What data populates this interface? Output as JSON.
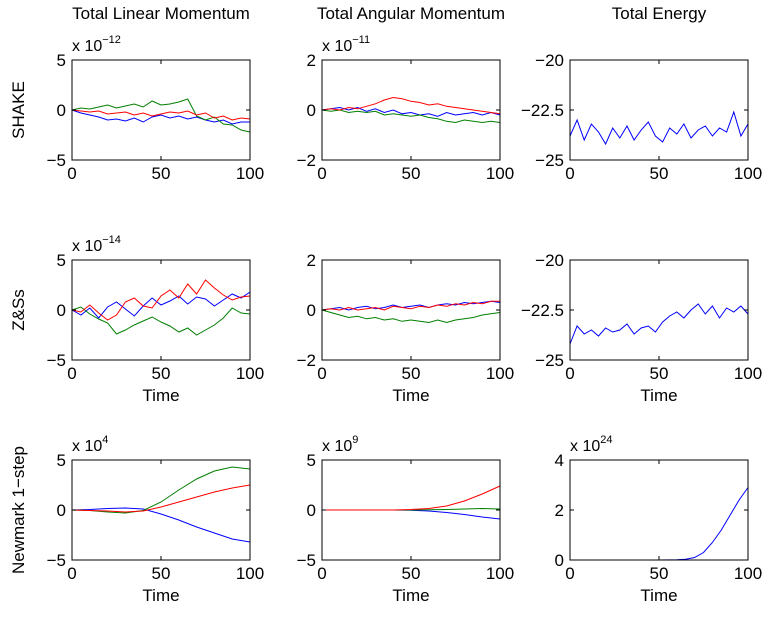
{
  "colors": {
    "x": "#0000ff",
    "y": "#007f00",
    "z": "#ff0000"
  },
  "columns": [
    "Total Linear Momentum",
    "Total Angular Momentum",
    "Total Energy"
  ],
  "rows": [
    "SHAKE",
    "Z&Ss",
    "Newmark 1−step"
  ],
  "chart_data": [
    {
      "type": "line",
      "panel": "shake-linear",
      "title": "Total Linear Momentum",
      "ylabel": "SHAKE",
      "xlabel": "",
      "multiplier": {
        "base": "x 10",
        "exp": "−12"
      },
      "xlim": [
        0,
        100
      ],
      "ylim": [
        -5,
        5
      ],
      "xticks": [
        0,
        50,
        100
      ],
      "yticks": [
        -5,
        0,
        5
      ],
      "xtick_labels": [
        "0",
        "50",
        "100"
      ],
      "ytick_labels": [
        "−5",
        "0",
        "5"
      ],
      "x": [
        0,
        5,
        10,
        15,
        20,
        25,
        30,
        35,
        40,
        45,
        50,
        55,
        60,
        65,
        70,
        75,
        80,
        85,
        90,
        95,
        100
      ],
      "series": [
        {
          "color": "#0000ff",
          "values": [
            0,
            -0.3,
            -0.5,
            -0.7,
            -1.0,
            -0.9,
            -1.1,
            -0.8,
            -1.2,
            -0.7,
            -0.5,
            -0.8,
            -0.6,
            -0.9,
            -0.7,
            -1.0,
            -1.2,
            -1.0,
            -1.4,
            -1.2,
            -1.2
          ]
        },
        {
          "color": "#007f00",
          "values": [
            0,
            0.2,
            0.1,
            0.3,
            0.5,
            0.2,
            0.4,
            0.6,
            0.3,
            0.9,
            0.5,
            0.6,
            0.8,
            1.1,
            -0.6,
            -1.0,
            -0.7,
            -1.4,
            -1.5,
            -2.0,
            -2.2
          ]
        },
        {
          "color": "#ff0000",
          "values": [
            0,
            -0.1,
            -0.2,
            -0.1,
            -0.4,
            -0.3,
            -0.2,
            -0.5,
            -0.3,
            -0.6,
            -0.4,
            -0.2,
            -0.3,
            -0.1,
            -0.5,
            -0.3,
            -0.8,
            -0.6,
            -1.0,
            -0.8,
            -0.9
          ]
        }
      ]
    },
    {
      "type": "line",
      "panel": "shake-angular",
      "title": "Total Angular Momentum",
      "ylabel": "",
      "xlabel": "",
      "multiplier": {
        "base": "x 10",
        "exp": "−11"
      },
      "xlim": [
        0,
        100
      ],
      "ylim": [
        -2,
        2
      ],
      "xticks": [
        0,
        50,
        100
      ],
      "yticks": [
        -2,
        0,
        2
      ],
      "xtick_labels": [
        "0",
        "50",
        "100"
      ],
      "ytick_labels": [
        "−2",
        "0",
        "2"
      ],
      "x": [
        0,
        5,
        10,
        15,
        20,
        25,
        30,
        35,
        40,
        45,
        50,
        55,
        60,
        65,
        70,
        75,
        80,
        85,
        90,
        95,
        100
      ],
      "series": [
        {
          "color": "#0000ff",
          "values": [
            0,
            0.05,
            0.1,
            0.0,
            0.1,
            -0.05,
            0.05,
            -0.1,
            0.0,
            -0.15,
            -0.1,
            -0.2,
            -0.15,
            -0.25,
            -0.1,
            -0.2,
            -0.15,
            -0.1,
            -0.2,
            -0.1,
            -0.2
          ]
        },
        {
          "color": "#007f00",
          "values": [
            0,
            -0.05,
            0.0,
            -0.1,
            -0.05,
            -0.1,
            -0.05,
            -0.2,
            -0.15,
            -0.2,
            -0.25,
            -0.2,
            -0.3,
            -0.35,
            -0.45,
            -0.5,
            -0.4,
            -0.45,
            -0.5,
            -0.45,
            -0.5
          ]
        },
        {
          "color": "#ff0000",
          "values": [
            0,
            0.05,
            0.0,
            0.1,
            0.05,
            0.15,
            0.25,
            0.4,
            0.5,
            0.45,
            0.35,
            0.3,
            0.2,
            0.25,
            0.15,
            0.1,
            0.05,
            0.0,
            -0.05,
            -0.1,
            -0.15
          ]
        }
      ]
    },
    {
      "type": "line",
      "panel": "shake-energy",
      "title": "Total Energy",
      "ylabel": "",
      "xlabel": "",
      "xlim": [
        0,
        100
      ],
      "ylim": [
        -25,
        -20
      ],
      "xticks": [
        0,
        50,
        100
      ],
      "yticks": [
        -25,
        -22.5,
        -20
      ],
      "xtick_labels": [
        "0",
        "50",
        "100"
      ],
      "ytick_labels": [
        "−25",
        "−22.5",
        "−20"
      ],
      "x": [
        0,
        4,
        8,
        12,
        16,
        20,
        24,
        28,
        32,
        36,
        40,
        44,
        48,
        52,
        56,
        60,
        64,
        68,
        72,
        76,
        80,
        84,
        88,
        92,
        96,
        100
      ],
      "series": [
        {
          "color": "#0000ff",
          "values": [
            -23.8,
            -23.0,
            -24.0,
            -23.2,
            -23.6,
            -24.2,
            -23.4,
            -23.9,
            -23.3,
            -24.0,
            -23.5,
            -23.1,
            -23.8,
            -24.1,
            -23.4,
            -23.7,
            -23.2,
            -23.9,
            -23.5,
            -23.3,
            -23.8,
            -23.4,
            -23.6,
            -22.6,
            -23.8,
            -23.2
          ]
        }
      ]
    },
    {
      "type": "line",
      "panel": "zss-linear",
      "title": "",
      "ylabel": "Z&Ss",
      "xlabel": "Time",
      "multiplier": {
        "base": "x 10",
        "exp": "−14"
      },
      "xlim": [
        0,
        100
      ],
      "ylim": [
        -5,
        5
      ],
      "xticks": [
        0,
        50,
        100
      ],
      "yticks": [
        -5,
        0,
        5
      ],
      "xtick_labels": [
        "0",
        "50",
        "100"
      ],
      "ytick_labels": [
        "−5",
        "0",
        "5"
      ],
      "x": [
        0,
        5,
        10,
        15,
        20,
        25,
        30,
        35,
        40,
        45,
        50,
        55,
        60,
        65,
        70,
        75,
        80,
        85,
        90,
        95,
        100
      ],
      "series": [
        {
          "color": "#0000ff",
          "values": [
            0,
            -0.5,
            0.2,
            -0.8,
            0.3,
            0.8,
            0.1,
            -0.6,
            0.4,
            1.2,
            0.5,
            0.9,
            1.4,
            0.6,
            1.3,
            1.1,
            0.4,
            1.0,
            1.6,
            1.2,
            1.8
          ]
        },
        {
          "color": "#007f00",
          "values": [
            0,
            0.3,
            -0.4,
            -0.9,
            -1.3,
            -2.4,
            -2.0,
            -1.5,
            -1.1,
            -0.7,
            -1.2,
            -1.6,
            -2.2,
            -1.8,
            -2.5,
            -2.0,
            -1.5,
            -0.8,
            0.2,
            -0.3,
            -0.4
          ]
        },
        {
          "color": "#ff0000",
          "values": [
            0,
            -0.2,
            0.5,
            -0.3,
            -1.0,
            -0.5,
            0.8,
            1.2,
            0.4,
            0.2,
            1.4,
            2.0,
            1.2,
            2.6,
            1.6,
            3.0,
            2.2,
            1.5,
            1.0,
            1.3,
            1.4
          ]
        }
      ]
    },
    {
      "type": "line",
      "panel": "zss-angular",
      "title": "",
      "ylabel": "",
      "xlabel": "Time",
      "xlim": [
        0,
        100
      ],
      "ylim": [
        -2,
        2
      ],
      "xticks": [
        0,
        50,
        100
      ],
      "yticks": [
        -2,
        0,
        2
      ],
      "xtick_labels": [
        "0",
        "50",
        "100"
      ],
      "ytick_labels": [
        "−2",
        "0",
        "2"
      ],
      "x": [
        0,
        5,
        10,
        15,
        20,
        25,
        30,
        35,
        40,
        45,
        50,
        55,
        60,
        65,
        70,
        75,
        80,
        85,
        90,
        95,
        100
      ],
      "series": [
        {
          "color": "#0000ff",
          "values": [
            0,
            0.05,
            0.1,
            0.0,
            0.1,
            0.15,
            0.05,
            0.1,
            0.2,
            0.1,
            0.15,
            0.2,
            0.1,
            0.2,
            0.25,
            0.2,
            0.3,
            0.25,
            0.3,
            0.35,
            0.3
          ]
        },
        {
          "color": "#007f00",
          "values": [
            0,
            -0.1,
            -0.2,
            -0.3,
            -0.25,
            -0.35,
            -0.3,
            -0.4,
            -0.35,
            -0.45,
            -0.4,
            -0.45,
            -0.5,
            -0.4,
            -0.5,
            -0.4,
            -0.35,
            -0.3,
            -0.2,
            -0.15,
            -0.1
          ]
        },
        {
          "color": "#ff0000",
          "values": [
            0,
            0.05,
            0.0,
            0.1,
            0.0,
            0.05,
            0.1,
            0.0,
            0.15,
            0.1,
            0.05,
            0.15,
            0.1,
            0.2,
            0.15,
            0.25,
            0.2,
            0.3,
            0.25,
            0.35,
            0.35
          ]
        }
      ]
    },
    {
      "type": "line",
      "panel": "zss-energy",
      "title": "",
      "ylabel": "",
      "xlabel": "Time",
      "xlim": [
        0,
        100
      ],
      "ylim": [
        -25,
        -20
      ],
      "xticks": [
        0,
        50,
        100
      ],
      "yticks": [
        -25,
        -22.5,
        -20
      ],
      "xtick_labels": [
        "0",
        "50",
        "100"
      ],
      "ytick_labels": [
        "−25",
        "−22.5",
        "−20"
      ],
      "x": [
        0,
        4,
        8,
        12,
        16,
        20,
        24,
        28,
        32,
        36,
        40,
        44,
        48,
        52,
        56,
        60,
        64,
        68,
        72,
        76,
        80,
        84,
        88,
        92,
        96,
        100
      ],
      "series": [
        {
          "color": "#0000ff",
          "values": [
            -24.2,
            -23.3,
            -23.7,
            -23.5,
            -23.8,
            -23.4,
            -23.6,
            -23.5,
            -23.2,
            -23.7,
            -23.4,
            -23.3,
            -23.6,
            -23.1,
            -22.8,
            -22.6,
            -22.9,
            -22.5,
            -22.2,
            -22.7,
            -22.3,
            -22.9,
            -22.4,
            -22.6,
            -22.3,
            -22.7
          ]
        }
      ]
    },
    {
      "type": "line",
      "panel": "newmark-linear",
      "title": "",
      "ylabel": "Newmark 1−step",
      "xlabel": "Time",
      "multiplier": {
        "base": "x 10",
        "exp": "4"
      },
      "xlim": [
        0,
        100
      ],
      "ylim": [
        -5,
        5
      ],
      "xticks": [
        0,
        50,
        100
      ],
      "yticks": [
        -5,
        0,
        5
      ],
      "xtick_labels": [
        "0",
        "50",
        "100"
      ],
      "ytick_labels": [
        "−5",
        "0",
        "5"
      ],
      "x": [
        0,
        10,
        20,
        30,
        40,
        50,
        60,
        70,
        80,
        90,
        100
      ],
      "series": [
        {
          "color": "#0000ff",
          "values": [
            0,
            0.05,
            0.15,
            0.2,
            0.1,
            -0.4,
            -1.0,
            -1.7,
            -2.3,
            -2.9,
            -3.2
          ]
        },
        {
          "color": "#007f00",
          "values": [
            0,
            -0.05,
            -0.2,
            -0.3,
            -0.05,
            0.8,
            2.0,
            3.1,
            3.9,
            4.3,
            4.1
          ]
        },
        {
          "color": "#ff0000",
          "values": [
            0,
            -0.05,
            -0.1,
            -0.2,
            -0.1,
            0.3,
            0.8,
            1.3,
            1.8,
            2.2,
            2.5
          ]
        }
      ]
    },
    {
      "type": "line",
      "panel": "newmark-angular",
      "title": "",
      "ylabel": "",
      "xlabel": "Time",
      "multiplier": {
        "base": "x 10",
        "exp": "9"
      },
      "xlim": [
        0,
        100
      ],
      "ylim": [
        -5,
        5
      ],
      "xticks": [
        0,
        50,
        100
      ],
      "yticks": [
        -5,
        0,
        5
      ],
      "xtick_labels": [
        "0",
        "50",
        "100"
      ],
      "ytick_labels": [
        "−5",
        "0",
        "5"
      ],
      "x": [
        0,
        10,
        20,
        30,
        40,
        50,
        60,
        70,
        80,
        90,
        100
      ],
      "series": [
        {
          "color": "#0000ff",
          "values": [
            0,
            0,
            0,
            0,
            0,
            -0.02,
            -0.1,
            -0.25,
            -0.45,
            -0.7,
            -0.9
          ]
        },
        {
          "color": "#007f00",
          "values": [
            0,
            0,
            0,
            0,
            0,
            0,
            0.02,
            0.05,
            0.1,
            0.15,
            0.1
          ]
        },
        {
          "color": "#ff0000",
          "values": [
            0,
            0,
            0,
            0,
            0,
            0.05,
            0.15,
            0.4,
            0.9,
            1.6,
            2.4
          ]
        }
      ]
    },
    {
      "type": "line",
      "panel": "newmark-energy",
      "title": "",
      "ylabel": "",
      "xlabel": "Time",
      "multiplier": {
        "base": "x 10",
        "exp": "24"
      },
      "xlim": [
        0,
        100
      ],
      "ylim": [
        0,
        4
      ],
      "xticks": [
        0,
        50,
        100
      ],
      "yticks": [
        0,
        2,
        4
      ],
      "xtick_labels": [
        "0",
        "50",
        "100"
      ],
      "ytick_labels": [
        "0",
        "2",
        "4"
      ],
      "x": [
        0,
        10,
        20,
        30,
        40,
        50,
        60,
        65,
        70,
        75,
        80,
        85,
        90,
        95,
        100
      ],
      "series": [
        {
          "color": "#0000ff",
          "values": [
            0,
            0,
            0,
            0,
            0,
            0,
            0.01,
            0.03,
            0.1,
            0.3,
            0.7,
            1.2,
            1.8,
            2.4,
            2.9
          ]
        }
      ]
    }
  ]
}
